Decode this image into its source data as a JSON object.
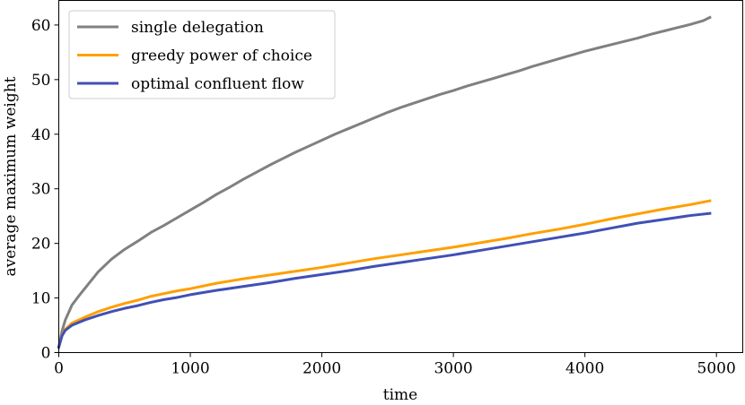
{
  "chart_data": {
    "type": "line",
    "title": "",
    "xlabel": "time",
    "ylabel": "average maximum weight",
    "xlim": [
      0,
      5200
    ],
    "ylim": [
      0,
      64.5
    ],
    "xticks": [
      0,
      1000,
      2000,
      3000,
      4000,
      5000
    ],
    "yticks": [
      0,
      10,
      20,
      30,
      40,
      50,
      60
    ],
    "grid": false,
    "legend_position": "top-left",
    "series": [
      {
        "name": "single delegation",
        "color": "#808080",
        "x": [
          0,
          25,
          50,
          100,
          150,
          200,
          300,
          400,
          500,
          600,
          700,
          800,
          900,
          1000,
          1100,
          1200,
          1300,
          1400,
          1500,
          1600,
          1700,
          1800,
          1900,
          2000,
          2100,
          2200,
          2300,
          2400,
          2500,
          2600,
          2700,
          2800,
          2900,
          3000,
          3100,
          3200,
          3300,
          3400,
          3500,
          3600,
          3700,
          3800,
          3900,
          4000,
          4100,
          4200,
          4300,
          4400,
          4500,
          4600,
          4700,
          4800,
          4900,
          4950
        ],
        "y": [
          1,
          4,
          6,
          8.7,
          10.3,
          11.8,
          14.8,
          17.1,
          18.9,
          20.4,
          22.0,
          23.3,
          24.7,
          26.1,
          27.5,
          29.0,
          30.3,
          31.7,
          33.0,
          34.3,
          35.5,
          36.7,
          37.8,
          38.9,
          40.0,
          41.0,
          42.0,
          43.0,
          44.0,
          44.9,
          45.7,
          46.5,
          47.3,
          48.0,
          48.8,
          49.5,
          50.2,
          50.9,
          51.6,
          52.4,
          53.1,
          53.8,
          54.5,
          55.2,
          55.8,
          56.4,
          57.0,
          57.6,
          58.3,
          58.9,
          59.5,
          60.1,
          60.8,
          61.4
        ]
      },
      {
        "name": "greedy power of choice",
        "color": "#ff9f00",
        "x": [
          0,
          25,
          50,
          100,
          200,
          300,
          400,
          500,
          600,
          700,
          800,
          900,
          1000,
          1200,
          1400,
          1600,
          1800,
          2000,
          2200,
          2400,
          2600,
          2800,
          3000,
          3200,
          3400,
          3600,
          3800,
          4000,
          4200,
          4400,
          4600,
          4800,
          4950
        ],
        "y": [
          1,
          3.2,
          4.3,
          5.4,
          6.5,
          7.5,
          8.3,
          9.0,
          9.6,
          10.3,
          10.8,
          11.3,
          11.7,
          12.7,
          13.5,
          14.2,
          14.9,
          15.6,
          16.4,
          17.2,
          17.9,
          18.6,
          19.3,
          20.1,
          20.9,
          21.8,
          22.6,
          23.5,
          24.5,
          25.4,
          26.3,
          27.1,
          27.8
        ]
      },
      {
        "name": "optimal confluent flow",
        "color": "#4050b5",
        "x": [
          0,
          25,
          50,
          100,
          200,
          300,
          400,
          500,
          600,
          700,
          800,
          900,
          1000,
          1200,
          1400,
          1600,
          1800,
          2000,
          2200,
          2400,
          2600,
          2800,
          3000,
          3200,
          3400,
          3600,
          3800,
          4000,
          4200,
          4400,
          4600,
          4800,
          4950
        ],
        "y": [
          1,
          3.1,
          4.1,
          5.0,
          6.0,
          6.8,
          7.5,
          8.1,
          8.6,
          9.2,
          9.7,
          10.1,
          10.6,
          11.4,
          12.1,
          12.8,
          13.6,
          14.3,
          15.0,
          15.8,
          16.5,
          17.2,
          17.9,
          18.7,
          19.5,
          20.3,
          21.1,
          21.9,
          22.8,
          23.7,
          24.4,
          25.1,
          25.5
        ]
      }
    ]
  }
}
